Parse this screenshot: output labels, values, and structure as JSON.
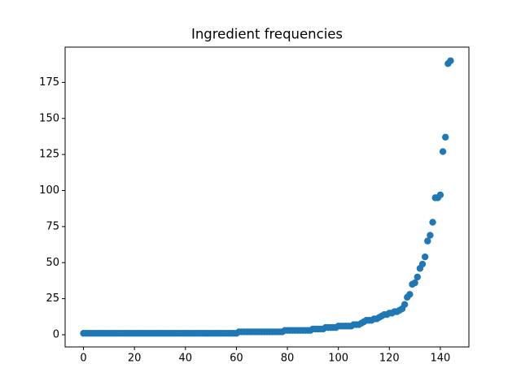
{
  "chart_data": {
    "type": "scatter",
    "title": "Ingredient frequencies",
    "x": [
      0,
      1,
      2,
      3,
      4,
      5,
      6,
      7,
      8,
      9,
      10,
      11,
      12,
      13,
      14,
      15,
      16,
      17,
      18,
      19,
      20,
      21,
      22,
      23,
      24,
      25,
      26,
      27,
      28,
      29,
      30,
      31,
      32,
      33,
      34,
      35,
      36,
      37,
      38,
      39,
      40,
      41,
      42,
      43,
      44,
      45,
      46,
      47,
      48,
      49,
      50,
      51,
      52,
      53,
      54,
      55,
      56,
      57,
      58,
      59,
      60,
      61,
      62,
      63,
      64,
      65,
      66,
      67,
      68,
      69,
      70,
      71,
      72,
      73,
      74,
      75,
      76,
      77,
      78,
      79,
      80,
      81,
      82,
      83,
      84,
      85,
      86,
      87,
      88,
      89,
      90,
      91,
      92,
      93,
      94,
      95,
      96,
      97,
      98,
      99,
      100,
      101,
      102,
      103,
      104,
      105,
      106,
      107,
      108,
      109,
      110,
      111,
      112,
      113,
      114,
      115,
      116,
      117,
      118,
      119,
      120,
      121,
      122,
      123,
      124,
      125,
      126,
      127,
      128,
      129,
      130,
      131,
      132,
      133,
      134,
      135,
      136,
      137,
      138,
      139,
      140,
      141,
      142,
      143,
      144
    ],
    "values": [
      1,
      1,
      1,
      1,
      1,
      1,
      1,
      1,
      1,
      1,
      1,
      1,
      1,
      1,
      1,
      1,
      1,
      1,
      1,
      1,
      1,
      1,
      1,
      1,
      1,
      1,
      1,
      1,
      1,
      1,
      1,
      1,
      1,
      1,
      1,
      1,
      1,
      1,
      1,
      1,
      1,
      1,
      1,
      1,
      1,
      1,
      1,
      1,
      1,
      1,
      1,
      1,
      1,
      1,
      1,
      1,
      1,
      1,
      1,
      1,
      1,
      2,
      2,
      2,
      2,
      2,
      2,
      2,
      2,
      2,
      2,
      2,
      2,
      2,
      2,
      2,
      2,
      2,
      2,
      3,
      3,
      3,
      3,
      3,
      3,
      3,
      3,
      3,
      3,
      3,
      4,
      4,
      4,
      4,
      4,
      5,
      5,
      5,
      5,
      5,
      6,
      6,
      6,
      6,
      6,
      6,
      7,
      7,
      7,
      8,
      9,
      10,
      10,
      10,
      11,
      11,
      12,
      13,
      14,
      14,
      15,
      15,
      16,
      16,
      17,
      18,
      21,
      26,
      28,
      35,
      36,
      40,
      46,
      49,
      54,
      65,
      69,
      78,
      95,
      95,
      97,
      127,
      137,
      188,
      190
    ],
    "color": "#1f77b4",
    "xlim": [
      -7.2,
      151.2
    ],
    "xticks": [
      0,
      20,
      40,
      60,
      80,
      100,
      120,
      140
    ],
    "ylim": [
      -8.45,
      199.45
    ],
    "yticks": [
      0,
      25,
      50,
      75,
      100,
      125,
      150,
      175
    ]
  }
}
